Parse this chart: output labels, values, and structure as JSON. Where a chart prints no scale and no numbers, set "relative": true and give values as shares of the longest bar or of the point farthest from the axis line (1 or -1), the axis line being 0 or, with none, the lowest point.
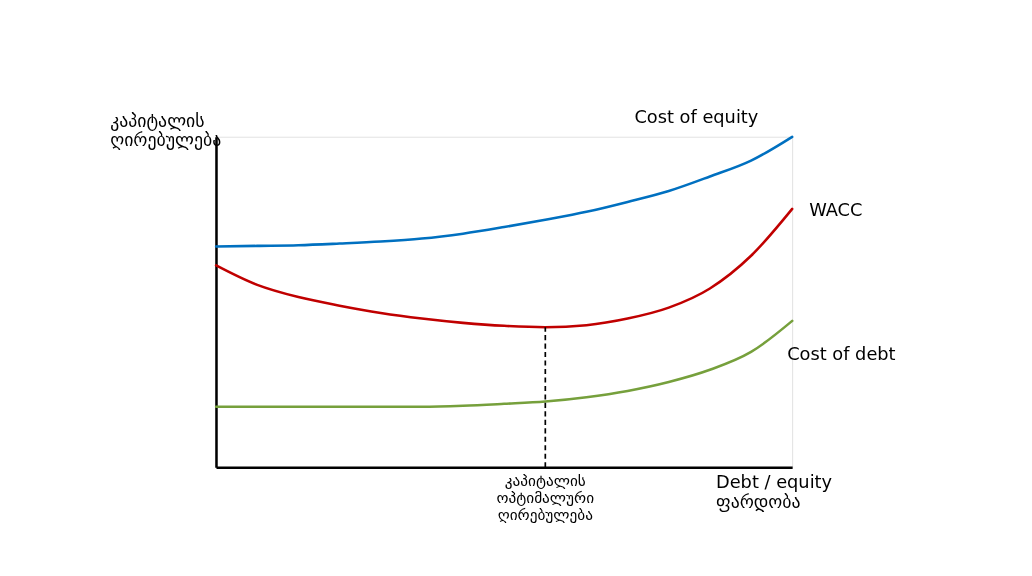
{
  "chart_data": {
    "type": "line",
    "relative": true,
    "xlabel": "Debt / equity\nფარდობა",
    "ylabel": "კაპიტალის\nღირებულება",
    "categories": [
      null,
      null,
      null,
      null,
      null,
      null,
      null,
      null,
      null,
      null,
      null,
      null,
      null,
      null,
      null
    ],
    "series": [
      {
        "name": "Cost of equity",
        "color": "#0070c0",
        "values": [
          0.668,
          0.67,
          0.672,
          0.677,
          0.683,
          0.692,
          0.707,
          0.727,
          0.749,
          0.773,
          0.803,
          0.836,
          0.88,
          0.928,
          1.0
        ]
      },
      {
        "name": "WACC",
        "color": "#c00000",
        "values": [
          0.611,
          0.552,
          0.515,
          0.489,
          0.467,
          0.45,
          0.437,
          0.428,
          0.424,
          0.43,
          0.45,
          0.483,
          0.541,
          0.64,
          0.782
        ]
      },
      {
        "name": "Cost of debt",
        "color": "#76a03c",
        "values": [
          0.183,
          0.183,
          0.183,
          0.183,
          0.183,
          0.183,
          0.186,
          0.192,
          0.199,
          0.212,
          0.231,
          0.258,
          0.295,
          0.349,
          0.443
        ]
      }
    ],
    "annotations": [
      "კაპიტალის\nოპტიმალური\nღირებულება"
    ],
    "legend": false,
    "marker": "none",
    "line_style": "solid"
  }
}
